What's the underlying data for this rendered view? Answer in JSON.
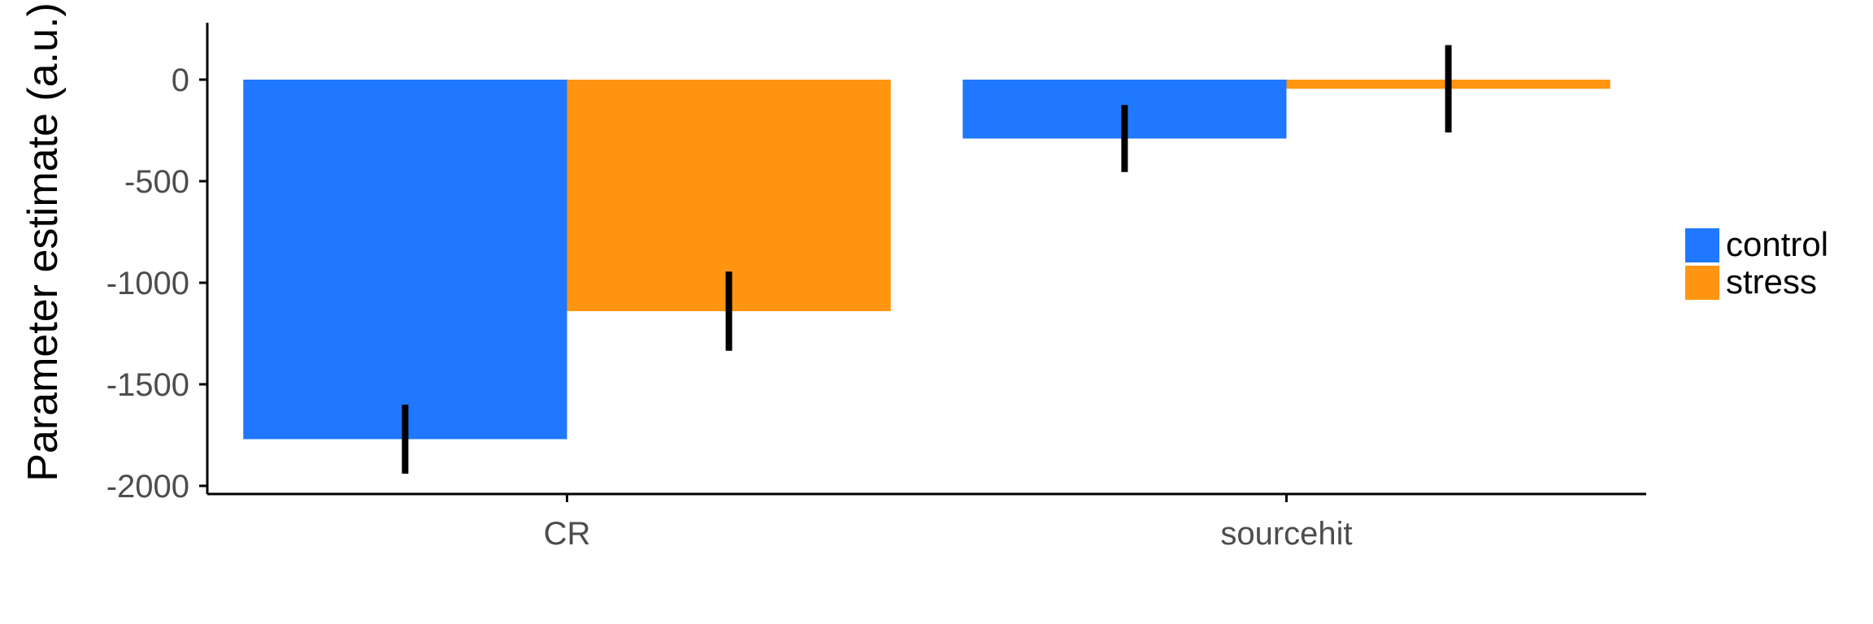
{
  "chart_data": {
    "type": "bar",
    "title": "",
    "xlabel": "",
    "ylabel": "Parameter estimate (a.u.)",
    "categories": [
      "CR",
      "sourcehit"
    ],
    "series": [
      {
        "name": "control",
        "color": "#1f78ff",
        "values": [
          -1770,
          -290
        ],
        "error": [
          170,
          165
        ]
      },
      {
        "name": "stress",
        "color": "#ff9510",
        "values": [
          -1140,
          -45
        ],
        "error": [
          195,
          215
        ]
      }
    ],
    "ylim": [
      -2040,
      280
    ],
    "yticks": [
      0,
      -500,
      -1000,
      -1500,
      -2000
    ],
    "ytick_labels": [
      "0",
      "-500",
      "-1000",
      "-1500",
      "-2000"
    ],
    "grid": false,
    "legend_position": "right"
  }
}
